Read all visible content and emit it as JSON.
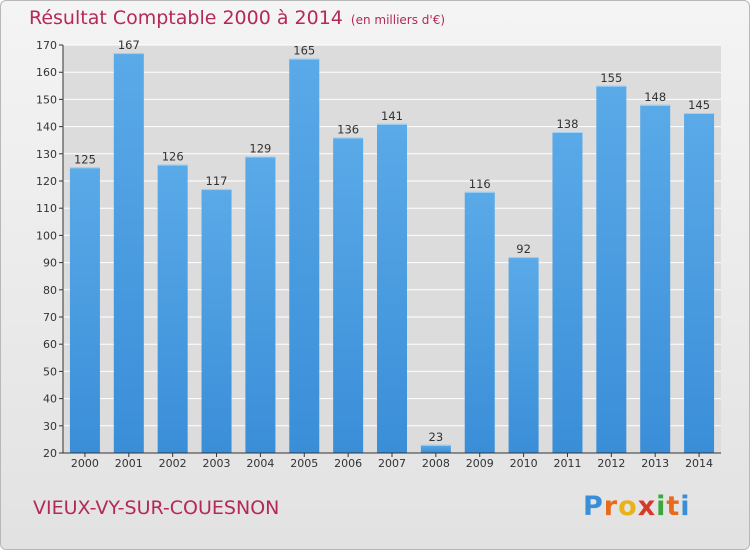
{
  "title": "Résultat Comptable 2000 à 2014",
  "unit": "(en milliers d'€)",
  "town": "VIEUX-VY-SUR-COUESNON",
  "logo": {
    "letters": [
      "P",
      "r",
      "o",
      "x",
      "i",
      "t",
      "i"
    ],
    "colors": [
      "#3a8ed8",
      "#e86a1a",
      "#e8b21a",
      "#d43a2a",
      "#3aa83a",
      "#e86a1a",
      "#3a8ed8"
    ]
  },
  "colors": {
    "bar": "#3a8ed8",
    "bar_light": "#5aaae8",
    "axis": "#333333",
    "grid": "#ffffff",
    "text_accent": "#b5285a"
  },
  "chart_data": {
    "type": "bar",
    "title": "Résultat Comptable 2000 à 2014",
    "ylabel": "(en milliers d'€)",
    "xlabel": "",
    "categories": [
      "2000",
      "2001",
      "2002",
      "2003",
      "2004",
      "2005",
      "2006",
      "2007",
      "2008",
      "2009",
      "2010",
      "2011",
      "2012",
      "2013",
      "2014"
    ],
    "values": [
      125,
      167,
      126,
      117,
      129,
      165,
      136,
      141,
      23,
      116,
      92,
      138,
      155,
      148,
      145
    ],
    "ylim": [
      20,
      170
    ],
    "yticks": [
      20,
      30,
      40,
      50,
      60,
      70,
      80,
      90,
      100,
      110,
      120,
      130,
      140,
      150,
      160,
      170
    ],
    "grid": true
  }
}
